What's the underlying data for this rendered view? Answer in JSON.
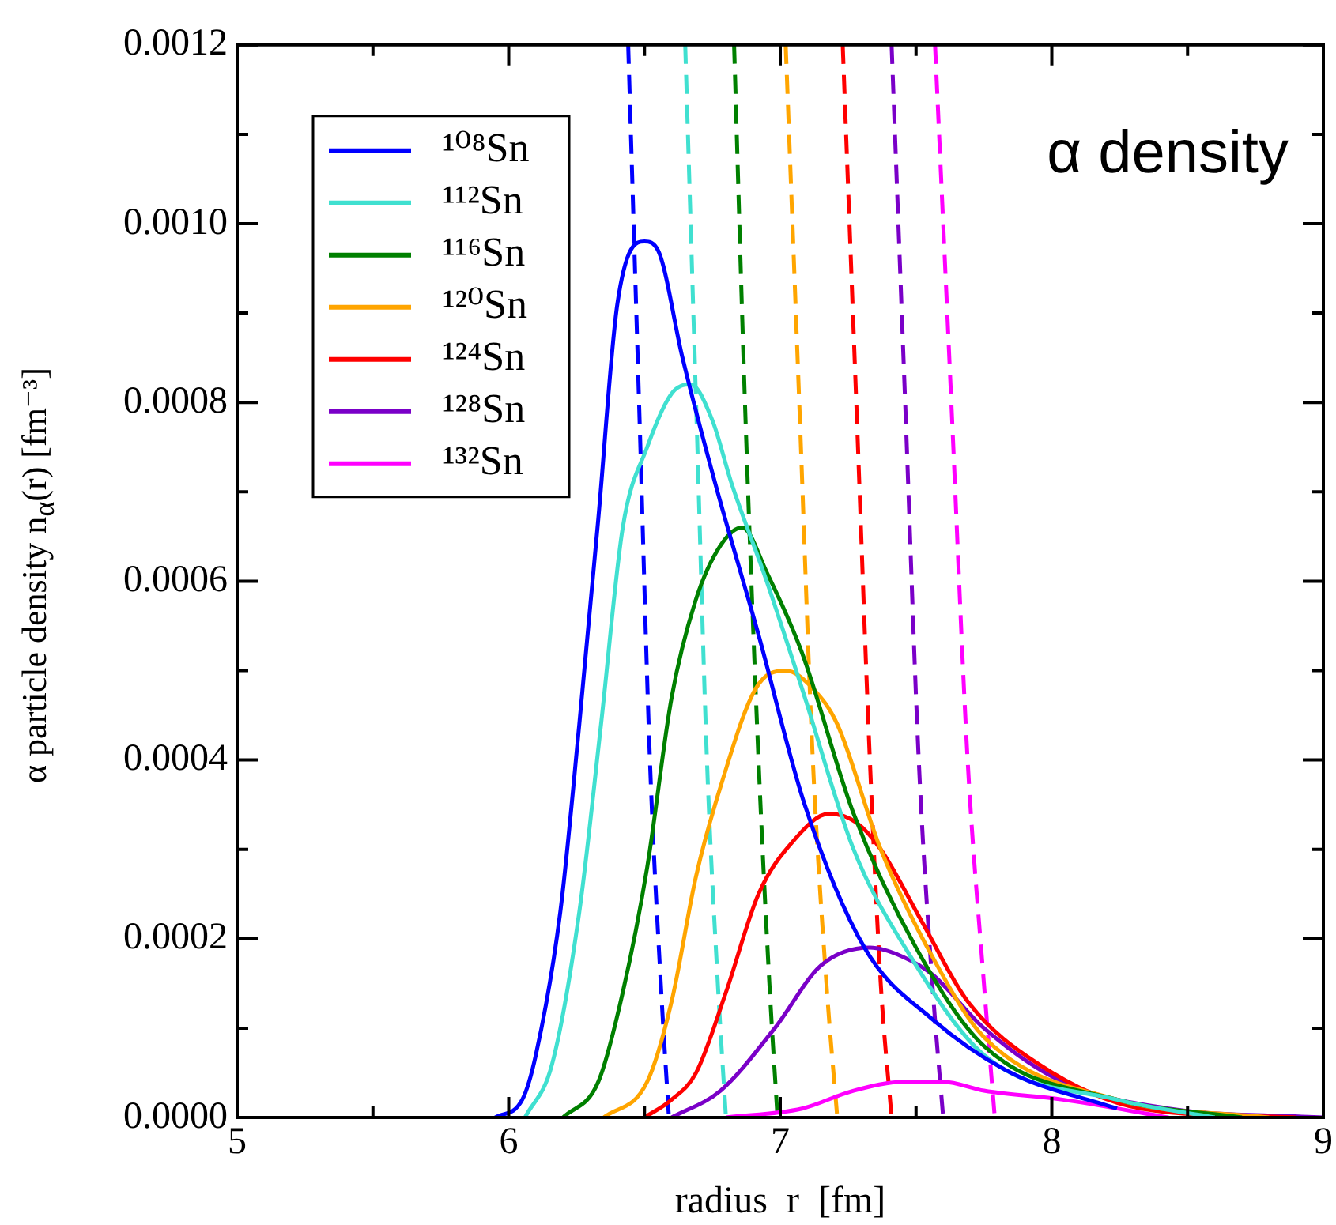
{
  "chart_data": {
    "type": "line",
    "xlabel": "radius  r  [fm]",
    "ylabel": "α particle density  n$_{α}$(r)  [fm⁻³]",
    "annotations": [
      "α density"
    ],
    "legend": "top left",
    "xlim": [
      5,
      9
    ],
    "xticks": [
      5,
      {
        "value": 5.5,
        "label": null
      },
      6,
      {
        "value": 6.5,
        "label": null
      },
      7,
      {
        "value": 7.5,
        "label": null
      },
      8,
      {
        "value": 8.5,
        "label": null
      },
      9
    ],
    "ylim": [
      0,
      0.0012
    ],
    "yticks": [
      {
        "value": 0,
        "label": "0.0000"
      },
      {
        "value": 0.0001,
        "label": null
      },
      {
        "value": 0.0002,
        "label": "0.0002"
      },
      {
        "value": 0.0003,
        "label": null
      },
      {
        "value": 0.0004,
        "label": "0.0004"
      },
      {
        "value": 0.0005,
        "label": null
      },
      {
        "value": 0.0006,
        "label": "0.0006"
      },
      {
        "value": 0.0007,
        "label": null
      },
      {
        "value": 0.0008,
        "label": "0.0008"
      },
      {
        "value": 0.0009,
        "label": null
      },
      {
        "value": 0.001,
        "label": "0.0010"
      },
      {
        "value": 0.0011,
        "label": null
      },
      {
        "value": 0.0012,
        "label": "0.0012"
      }
    ],
    "series": [
      {
        "name": "¹⁰⁸Sn",
        "color": "#0000ff",
        "x": [
          5.95,
          6.05,
          6.1,
          6.19,
          6.26,
          6.33,
          6.4,
          6.5,
          6.55,
          6.64,
          6.76,
          6.92,
          7.09,
          7.31,
          7.56,
          7.85,
          8.24
        ],
        "values": [
          0,
          2e-05,
          7e-05,
          0.00023,
          0.00044,
          0.00067,
          0.00091,
          0.00098,
          0.00097,
          0.00085,
          0.00071,
          0.00054,
          0.00035,
          0.00019,
          0.00011,
          5e-05,
          1e-05
        ]
      },
      {
        "name": "¹¹²Sn",
        "color": "#40e0d0",
        "x": [
          6.06,
          6.16,
          6.26,
          6.34,
          6.42,
          6.51,
          6.6,
          6.67,
          6.75,
          6.82,
          6.95,
          7.08,
          7.27,
          7.46,
          7.75,
          8.24,
          8.6
        ],
        "values": [
          0,
          6e-05,
          0.00023,
          0.00044,
          0.00066,
          0.00075,
          0.00081,
          0.00082,
          0.00078,
          0.00071,
          0.0006,
          0.00048,
          0.0003,
          0.00019,
          7e-05,
          2e-05,
          0
        ]
      },
      {
        "name": "¹¹⁶Sn",
        "color": "#008000",
        "x": [
          6.2,
          6.33,
          6.42,
          6.51,
          6.6,
          6.69,
          6.78,
          6.86,
          6.95,
          7.08,
          7.27,
          7.5,
          7.75,
          8.24,
          8.7
        ],
        "values": [
          0,
          4e-05,
          0.00014,
          0.00028,
          0.00047,
          0.00058,
          0.00064,
          0.00066,
          0.00061,
          0.00052,
          0.00034,
          0.00019,
          8e-05,
          2e-05,
          0
        ]
      },
      {
        "name": "¹²⁰Sn",
        "color": "#ffa500",
        "x": [
          6.35,
          6.51,
          6.6,
          6.69,
          6.78,
          6.91,
          7.02,
          7.12,
          7.21,
          7.37,
          7.56,
          7.75,
          8.24,
          8.8
        ],
        "values": [
          0,
          4e-05,
          0.00013,
          0.00027,
          0.00037,
          0.00048,
          0.0005,
          0.00048,
          0.00044,
          0.0003,
          0.00018,
          9e-05,
          2e-05,
          0
        ]
      },
      {
        "name": "¹²⁴Sn",
        "color": "#ff0000",
        "x": [
          6.5,
          6.6,
          6.69,
          6.8,
          6.92,
          7.05,
          7.18,
          7.28,
          7.37,
          7.52,
          7.69,
          7.95,
          8.33,
          8.9
        ],
        "values": [
          0,
          2e-05,
          5e-05,
          0.00014,
          0.00025,
          0.00031,
          0.00034,
          0.00033,
          0.0003,
          0.00022,
          0.00013,
          6e-05,
          1e-05,
          0
        ]
      },
      {
        "name": "¹²⁸Sn",
        "color": "#7a00c8",
        "x": [
          6.6,
          6.78,
          6.98,
          7.15,
          7.33,
          7.45,
          7.56,
          7.75,
          8.04,
          8.43,
          9
        ],
        "values": [
          0,
          3e-05,
          0.0001,
          0.00017,
          0.00019,
          0.00018,
          0.00016,
          0.0001,
          4e-05,
          1e-05,
          0
        ]
      },
      {
        "name": "¹³²Sn",
        "color": "#ff00ff",
        "x": [
          6.8,
          7.08,
          7.27,
          7.46,
          7.6,
          7.75,
          8.04,
          8.43
        ],
        "values": [
          0,
          1e-05,
          3e-05,
          4e-05,
          4e-05,
          3e-05,
          2e-05,
          0
        ]
      },
      {
        "color": "#0000ff",
        "line_style": "dashed",
        "x": [
          6.44,
          6.48,
          6.52,
          6.56,
          6.59
        ],
        "values": [
          0.0012,
          0.0008,
          0.0004,
          0.00015,
          0
        ]
      },
      {
        "color": "#40e0d0",
        "line_style": "dashed",
        "x": [
          6.65,
          6.69,
          6.73,
          6.77,
          6.8
        ],
        "values": [
          0.0012,
          0.0008,
          0.0004,
          0.00015,
          0
        ]
      },
      {
        "color": "#008000",
        "line_style": "dashed",
        "x": [
          6.83,
          6.87,
          6.92,
          6.96,
          6.99
        ],
        "values": [
          0.0012,
          0.0008,
          0.0004,
          0.00015,
          0
        ]
      },
      {
        "color": "#ffa500",
        "line_style": "dashed",
        "x": [
          7.02,
          7.07,
          7.12,
          7.17,
          7.21
        ],
        "values": [
          0.0012,
          0.0008,
          0.0004,
          0.00015,
          0
        ]
      },
      {
        "color": "#ff0000",
        "line_style": "dashed",
        "x": [
          7.23,
          7.28,
          7.33,
          7.37,
          7.41
        ],
        "values": [
          0.0012,
          0.0008,
          0.0004,
          0.00015,
          0
        ]
      },
      {
        "color": "#7a00c8",
        "line_style": "dashed",
        "x": [
          7.41,
          7.46,
          7.51,
          7.56,
          7.6
        ],
        "values": [
          0.0012,
          0.0008,
          0.0004,
          0.00015,
          0
        ]
      },
      {
        "color": "#ff00ff",
        "line_style": "dashed",
        "x": [
          7.57,
          7.63,
          7.69,
          7.75,
          7.79
        ],
        "values": [
          0.0012,
          0.0008,
          0.0004,
          0.00015,
          0
        ]
      }
    ]
  }
}
